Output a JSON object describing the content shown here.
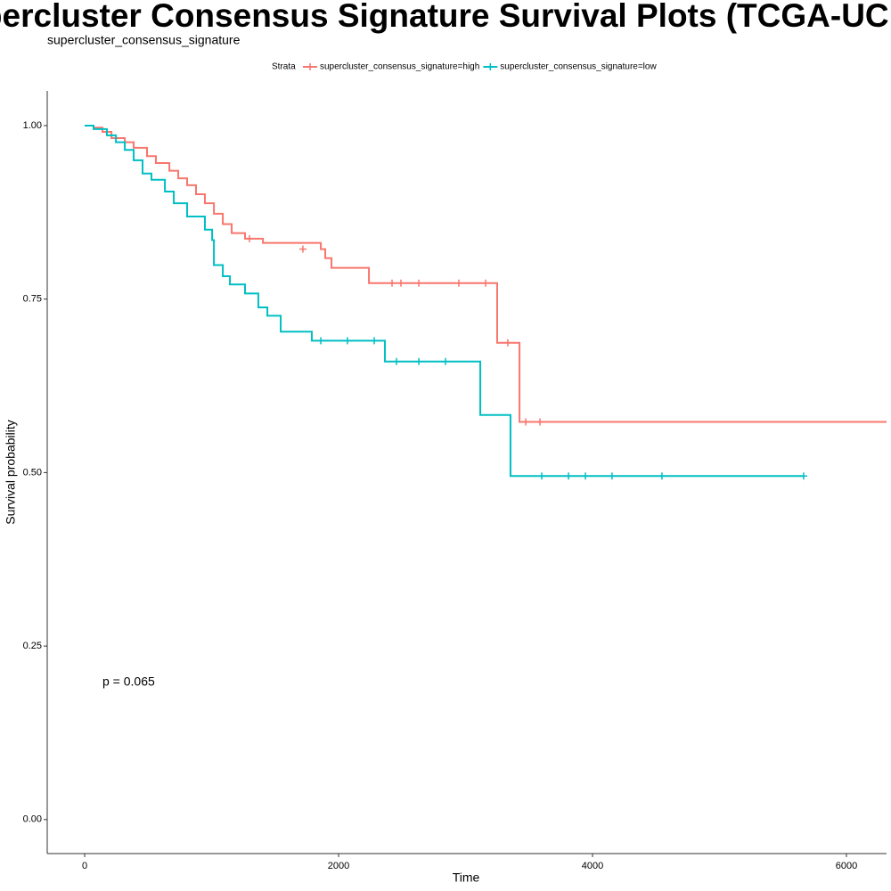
{
  "chart_data": {
    "type": "step",
    "title": "Supercluster Consensus Signature Survival Plots (TCGA-UCEC)",
    "subtitle": "supercluster_consensus_signature",
    "x_label": "Time",
    "y_label": "Survival probability",
    "legend_title": "Strata",
    "legend_position": "top",
    "annotation": "p = 0.065",
    "xlim": [
      -295,
      6316
    ],
    "xticks": [
      0,
      2000,
      4000,
      6000
    ],
    "ylim": [
      -0.049,
      1.05
    ],
    "yticks": [
      {
        "value": 0,
        "label": "0.00"
      },
      {
        "value": 0.25,
        "label": "0.25"
      },
      {
        "value": 0.5,
        "label": "0.50"
      },
      {
        "value": 0.75,
        "label": "0.75"
      },
      {
        "value": 1,
        "label": "1.00"
      }
    ],
    "grid": false,
    "series": [
      {
        "name": "supercluster_consensus_signature=high",
        "color": "#F8766D",
        "x": [
          0,
          70,
          140,
          211,
          316,
          386,
          491,
          561,
          667,
          737,
          807,
          877,
          947,
          1018,
          1088,
          1158,
          1263,
          1404,
          1860,
          1895,
          1944,
          2239,
          3249,
          3425,
          6316
        ],
        "values": [
          1,
          0.997,
          0.991,
          0.982,
          0.976,
          0.968,
          0.956,
          0.946,
          0.935,
          0.924,
          0.914,
          0.901,
          0.888,
          0.873,
          0.858,
          0.845,
          0.837,
          0.831,
          0.822,
          0.809,
          0.795,
          0.773,
          0.687,
          0.573,
          0.573
        ],
        "censor_times": [
          1298,
          1719,
          2421,
          2491,
          2632,
          2947,
          3158,
          3333,
          3474,
          3586
        ],
        "censor_values": [
          0.837,
          0.822,
          0.773,
          0.773,
          0.773,
          0.773,
          0.773,
          0.687,
          0.573,
          0.573
        ]
      },
      {
        "name": "supercluster_consensus_signature=low",
        "color": "#00BFC4",
        "x": [
          0,
          70,
          175,
          246,
          316,
          386,
          456,
          526,
          632,
          702,
          807,
          947,
          1004,
          1018,
          1088,
          1144,
          1263,
          1368,
          1439,
          1544,
          1789,
          2365,
          3116,
          3354,
          5663
        ],
        "values": [
          1,
          0.995,
          0.986,
          0.976,
          0.965,
          0.95,
          0.931,
          0.922,
          0.905,
          0.888,
          0.869,
          0.85,
          0.835,
          0.799,
          0.783,
          0.771,
          0.758,
          0.738,
          0.726,
          0.703,
          0.69,
          0.66,
          0.583,
          0.495,
          0.495
        ],
        "censor_times": [
          1860,
          2070,
          2281,
          2456,
          2632,
          2842,
          3600,
          3811,
          3944,
          4154,
          4547,
          5663
        ],
        "censor_values": [
          0.69,
          0.69,
          0.69,
          0.66,
          0.66,
          0.66,
          0.495,
          0.495,
          0.495,
          0.495,
          0.495,
          0.495
        ]
      }
    ]
  }
}
